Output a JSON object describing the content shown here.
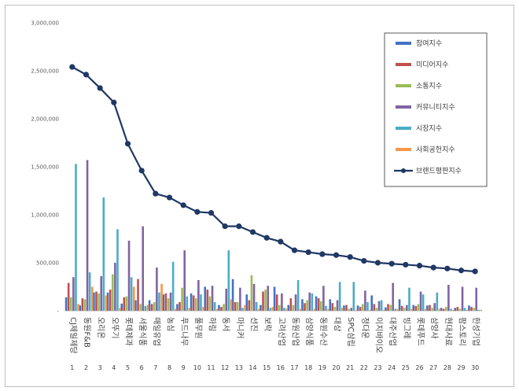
{
  "chart_data": {
    "type": "bar",
    "title": "",
    "xlabel": "",
    "ylabel": "",
    "ylim": [
      0,
      3000000
    ],
    "yticks": [
      "3,000,000",
      "2,500,000",
      "2,000,000",
      "1,500,000",
      "1,000,000",
      "500,000",
      "-"
    ],
    "ytick_values": [
      3000000,
      2500000,
      2000000,
      1500000,
      1000000,
      500000,
      0
    ],
    "grid": false,
    "legend_position": "top-right",
    "categories": [
      "CJ제일제당",
      "동원F&B",
      "오리온",
      "오뚜기",
      "롯데제과",
      "서울식품",
      "매일유업",
      "농심",
      "푸드나무",
      "풀무원",
      "하림",
      "동서",
      "마니커",
      "선진",
      "보락",
      "고려산업",
      "동원산업",
      "삼양식품",
      "동원수산",
      "대상",
      "SPC삼립",
      "정다운",
      "이지바이오",
      "대주산업",
      "빙그레",
      "롯데푸드",
      "삼양사",
      "현대사료",
      "팜스토리",
      "한성기업"
    ],
    "ranks": [
      "1",
      "2",
      "3",
      "4",
      "5",
      "6",
      "7",
      "8",
      "9",
      "10",
      "11",
      "12",
      "13",
      "14",
      "15",
      "16",
      "17",
      "18",
      "19",
      "20",
      "21",
      "22",
      "23",
      "24",
      "25",
      "26",
      "27",
      "28",
      "29",
      "30"
    ],
    "series": [
      {
        "name": "참여지수",
        "color": "#4472c4",
        "kind": "bar",
        "values": [
          140000,
          55000,
          190000,
          190000,
          75000,
          110000,
          110000,
          170000,
          70000,
          180000,
          250000,
          60000,
          330000,
          170000,
          60000,
          250000,
          60000,
          120000,
          150000,
          120000,
          55000,
          55000,
          160000,
          35000,
          120000,
          60000,
          55000,
          30000,
          30000,
          55000
        ]
      },
      {
        "name": "미디어지수",
        "color": "#c0504d",
        "kind": "bar",
        "values": [
          290000,
          130000,
          200000,
          220000,
          140000,
          330000,
          70000,
          180000,
          90000,
          160000,
          220000,
          40000,
          90000,
          110000,
          200000,
          170000,
          130000,
          80000,
          130000,
          80000,
          60000,
          40000,
          70000,
          70000,
          50000,
          50000,
          60000,
          20000,
          40000,
          40000
        ]
      },
      {
        "name": "소통지수",
        "color": "#9bbb59",
        "kind": "bar",
        "values": [
          140000,
          120000,
          180000,
          380000,
          150000,
          70000,
          90000,
          130000,
          240000,
          130000,
          150000,
          70000,
          90000,
          370000,
          220000,
          60000,
          60000,
          110000,
          100000,
          40000,
          20000,
          70000,
          30000,
          60000,
          30000,
          70000,
          30000,
          40000,
          20000,
          30000
        ]
      },
      {
        "name": "커뮤니티지수",
        "color": "#8064a2",
        "kind": "bar",
        "values": [
          350000,
          1570000,
          360000,
          500000,
          730000,
          880000,
          450000,
          190000,
          630000,
          320000,
          260000,
          230000,
          240000,
          280000,
          260000,
          180000,
          170000,
          190000,
          260000,
          110000,
          30000,
          210000,
          100000,
          290000,
          60000,
          200000,
          80000,
          270000,
          250000,
          240000
        ]
      },
      {
        "name": "시장지수",
        "color": "#4bacc6",
        "kind": "bar",
        "values": [
          1530000,
          400000,
          1180000,
          850000,
          350000,
          50000,
          190000,
          510000,
          150000,
          170000,
          90000,
          630000,
          30000,
          90000,
          30000,
          30000,
          320000,
          180000,
          50000,
          300000,
          300000,
          90000,
          110000,
          20000,
          240000,
          170000,
          190000,
          20000,
          30000,
          10000
        ]
      },
      {
        "name": "사회공헌지수",
        "color": "#f79646",
        "kind": "bar",
        "values": [
          70000,
          250000,
          160000,
          30000,
          250000,
          60000,
          280000,
          20000,
          30000,
          40000,
          20000,
          120000,
          60000,
          20000,
          40000,
          20000,
          20000,
          20000,
          20000,
          30000,
          10000,
          10000,
          10000,
          20000,
          20000,
          20000,
          20000,
          10000,
          10000,
          10000
        ]
      },
      {
        "name": "브랜드평판지수",
        "color": "#1f3864",
        "kind": "line",
        "values": [
          2540000,
          2460000,
          2320000,
          2170000,
          1740000,
          1460000,
          1220000,
          1180000,
          1100000,
          1030000,
          1020000,
          880000,
          880000,
          820000,
          760000,
          720000,
          630000,
          610000,
          590000,
          580000,
          560000,
          520000,
          500000,
          490000,
          480000,
          470000,
          450000,
          440000,
          420000,
          410000
        ]
      }
    ]
  }
}
